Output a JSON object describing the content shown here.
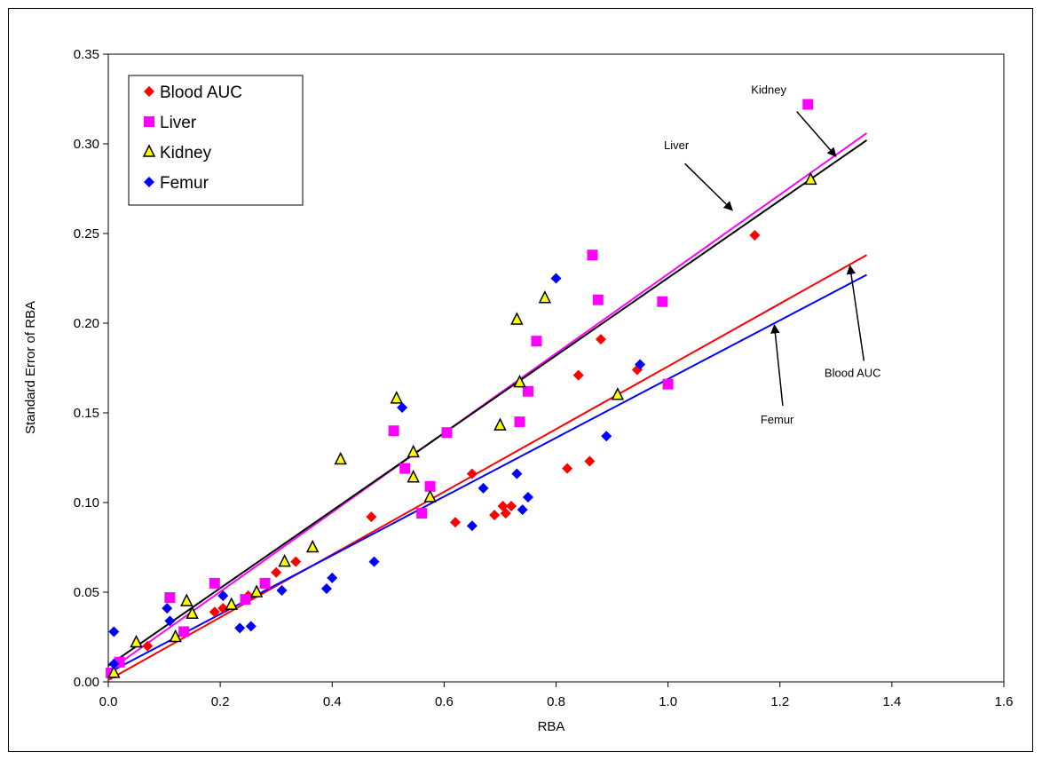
{
  "chart_data": {
    "type": "scatter",
    "xlabel": "RBA",
    "ylabel": "Standard Error of RBA",
    "xlim": [
      0,
      1.6
    ],
    "ylim": [
      0,
      0.35
    ],
    "xticks": [
      "0.0",
      "0.2",
      "0.4",
      "0.6",
      "0.8",
      "1.0",
      "1.2",
      "1.4",
      "1.6"
    ],
    "yticks": [
      "0.00",
      "0.05",
      "0.10",
      "0.15",
      "0.20",
      "0.25",
      "0.30",
      "0.35"
    ],
    "grid": false,
    "legend_position": "top-left",
    "series": [
      {
        "name": "Blood AUC",
        "marker": "diamond",
        "color": "#ff0000",
        "points": [
          [
            0.005,
            0.004
          ],
          [
            0.07,
            0.02
          ],
          [
            0.19,
            0.039
          ],
          [
            0.205,
            0.041
          ],
          [
            0.25,
            0.048
          ],
          [
            0.3,
            0.061
          ],
          [
            0.335,
            0.067
          ],
          [
            0.47,
            0.092
          ],
          [
            0.62,
            0.089
          ],
          [
            0.65,
            0.116
          ],
          [
            0.69,
            0.093
          ],
          [
            0.705,
            0.098
          ],
          [
            0.71,
            0.094
          ],
          [
            0.72,
            0.098
          ],
          [
            0.82,
            0.119
          ],
          [
            0.84,
            0.171
          ],
          [
            0.86,
            0.123
          ],
          [
            0.88,
            0.191
          ],
          [
            0.945,
            0.174
          ],
          [
            1.155,
            0.249
          ]
        ],
        "fit": {
          "x": [
            0.0,
            1.355
          ],
          "y": [
            0.001,
            0.238
          ]
        }
      },
      {
        "name": "Liver",
        "marker": "square",
        "color": "#ff00ff",
        "points": [
          [
            0.005,
            0.005
          ],
          [
            0.02,
            0.011
          ],
          [
            0.11,
            0.047
          ],
          [
            0.135,
            0.028
          ],
          [
            0.19,
            0.055
          ],
          [
            0.245,
            0.046
          ],
          [
            0.28,
            0.055
          ],
          [
            0.51,
            0.14
          ],
          [
            0.53,
            0.119
          ],
          [
            0.56,
            0.094
          ],
          [
            0.575,
            0.109
          ],
          [
            0.605,
            0.139
          ],
          [
            0.735,
            0.145
          ],
          [
            0.75,
            0.162
          ],
          [
            0.765,
            0.19
          ],
          [
            0.865,
            0.238
          ],
          [
            0.875,
            0.213
          ],
          [
            0.99,
            0.212
          ],
          [
            1.0,
            0.166
          ],
          [
            1.25,
            0.322
          ]
        ],
        "fit": {
          "x": [
            0.0,
            1.355
          ],
          "y": [
            0.006,
            0.306
          ]
        }
      },
      {
        "name": "Kidney",
        "marker": "triangle",
        "color": "#ffff00",
        "points": [
          [
            0.01,
            0.005
          ],
          [
            0.05,
            0.022
          ],
          [
            0.12,
            0.025
          ],
          [
            0.14,
            0.045
          ],
          [
            0.15,
            0.038
          ],
          [
            0.22,
            0.043
          ],
          [
            0.265,
            0.05
          ],
          [
            0.315,
            0.067
          ],
          [
            0.365,
            0.075
          ],
          [
            0.415,
            0.124
          ],
          [
            0.515,
            0.158
          ],
          [
            0.545,
            0.128
          ],
          [
            0.545,
            0.114
          ],
          [
            0.575,
            0.103
          ],
          [
            0.7,
            0.143
          ],
          [
            0.73,
            0.202
          ],
          [
            0.735,
            0.167
          ],
          [
            0.78,
            0.214
          ],
          [
            0.91,
            0.16
          ],
          [
            1.255,
            0.28
          ]
        ],
        "fit": {
          "x": [
            0.0,
            1.355
          ],
          "y": [
            0.009,
            0.302
          ]
        }
      },
      {
        "name": "Femur",
        "marker": "diamond",
        "color": "#0000ff",
        "points": [
          [
            0.01,
            0.028
          ],
          [
            0.01,
            0.01
          ],
          [
            0.105,
            0.041
          ],
          [
            0.11,
            0.034
          ],
          [
            0.205,
            0.048
          ],
          [
            0.235,
            0.03
          ],
          [
            0.255,
            0.031
          ],
          [
            0.31,
            0.051
          ],
          [
            0.39,
            0.052
          ],
          [
            0.4,
            0.058
          ],
          [
            0.475,
            0.067
          ],
          [
            0.525,
            0.153
          ],
          [
            0.65,
            0.087
          ],
          [
            0.67,
            0.108
          ],
          [
            0.73,
            0.116
          ],
          [
            0.74,
            0.096
          ],
          [
            0.75,
            0.103
          ],
          [
            0.8,
            0.225
          ],
          [
            0.89,
            0.137
          ],
          [
            0.95,
            0.177
          ]
        ],
        "fit": {
          "x": [
            0.0,
            1.355
          ],
          "y": [
            0.005,
            0.227
          ]
        }
      }
    ],
    "annotations": [
      {
        "label": "Kidney",
        "text_at": [
          1.18,
          0.328
        ],
        "arrow_from": [
          1.23,
          0.318
        ],
        "arrow_to": [
          1.3,
          0.293
        ]
      },
      {
        "label": "Liver",
        "text_at": [
          1.015,
          0.297
        ],
        "arrow_from": [
          1.03,
          0.289
        ],
        "arrow_to": [
          1.115,
          0.263
        ]
      },
      {
        "label": "Blood AUC",
        "text_at": [
          1.33,
          0.17
        ],
        "arrow_from": [
          1.35,
          0.179
        ],
        "arrow_to": [
          1.325,
          0.232
        ]
      },
      {
        "label": "Femur",
        "text_at": [
          1.195,
          0.144
        ],
        "arrow_from": [
          1.205,
          0.154
        ],
        "arrow_to": [
          1.19,
          0.199
        ]
      }
    ]
  }
}
